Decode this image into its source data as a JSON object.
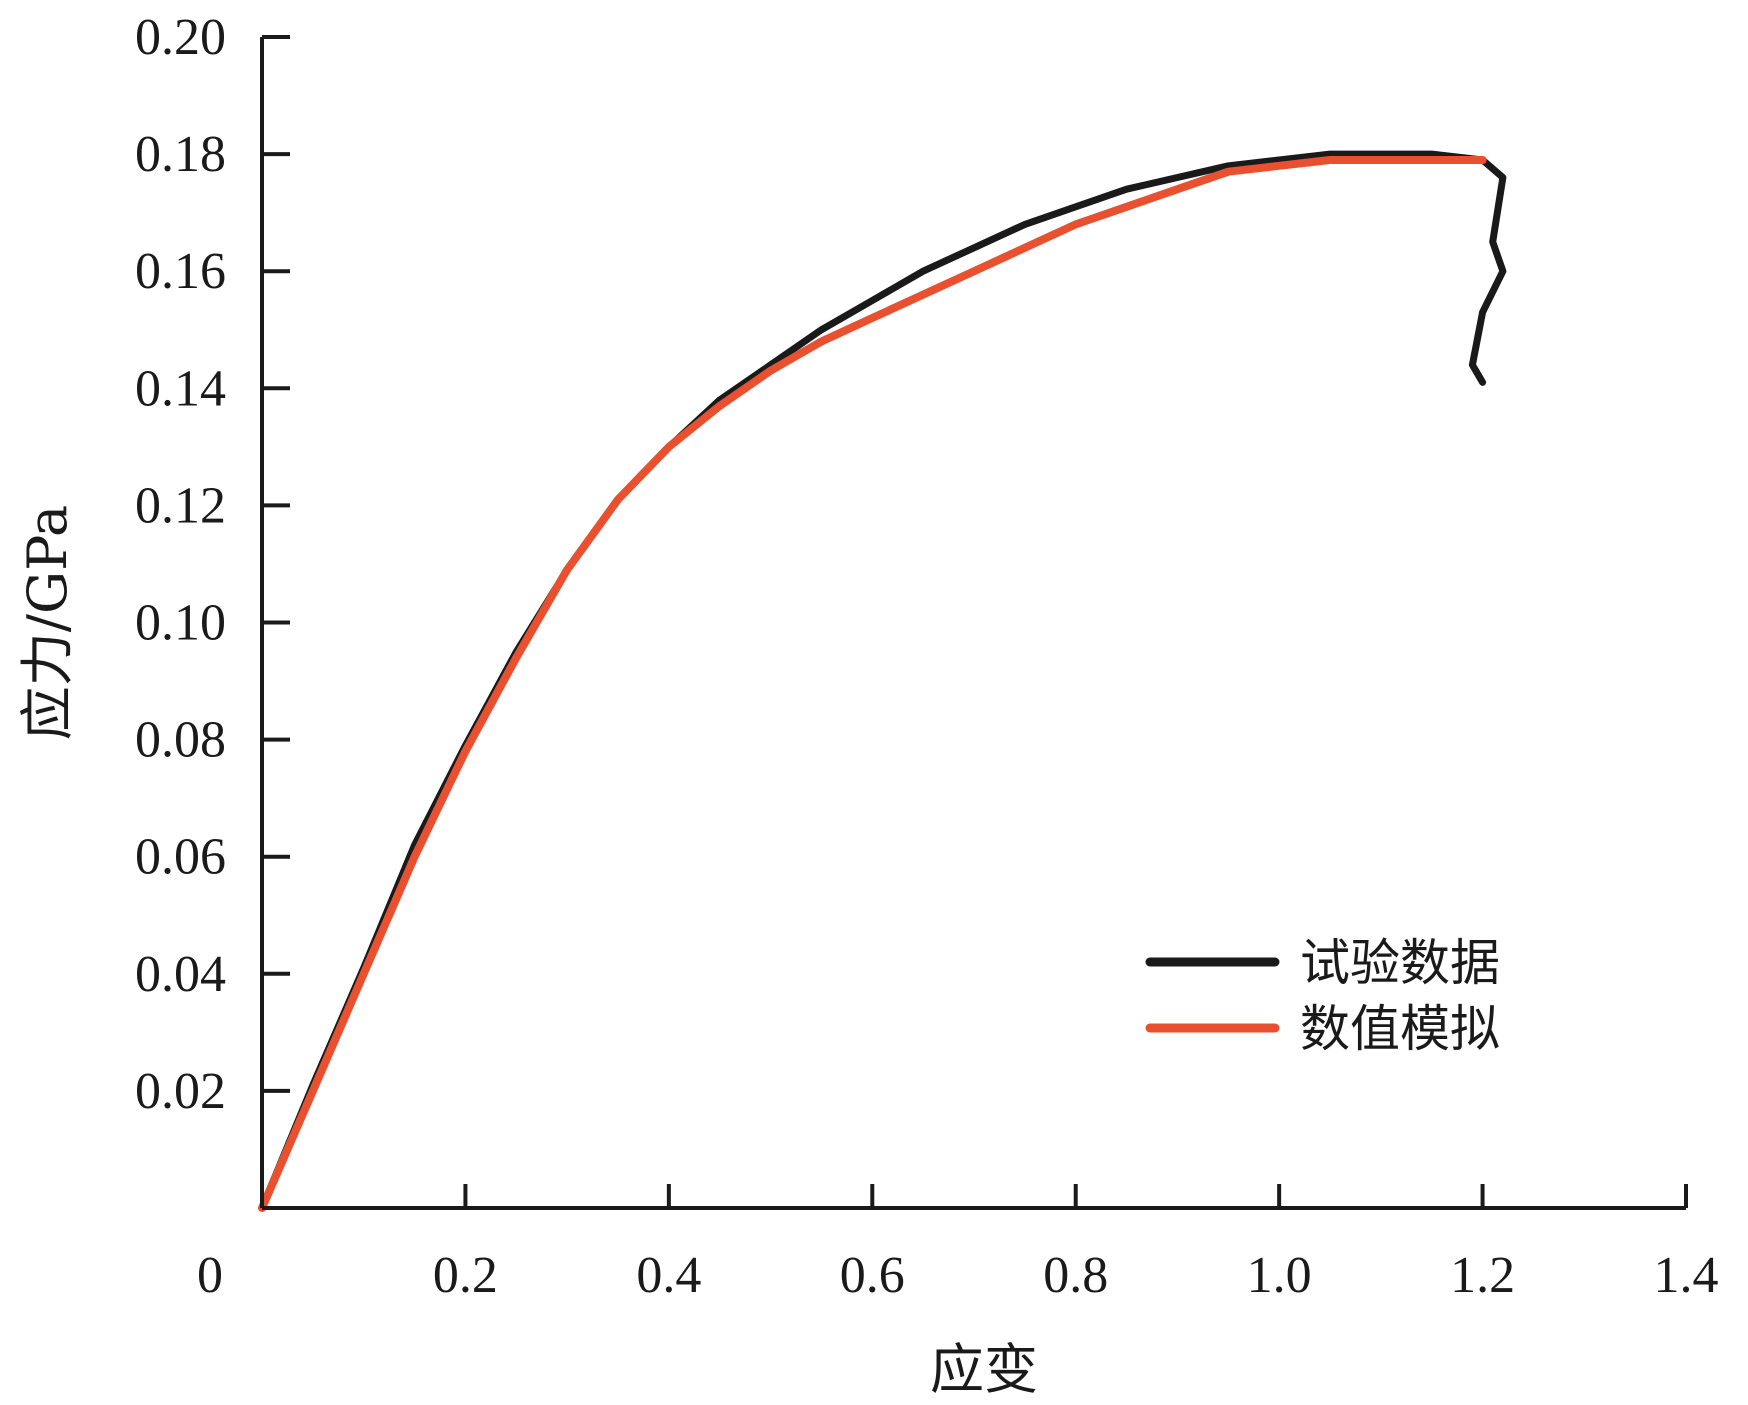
{
  "chart_data": {
    "type": "line",
    "xlabel": "应变",
    "ylabel": "应力/GPa",
    "xlim": [
      0,
      1.4
    ],
    "ylim": [
      0,
      0.2
    ],
    "x_ticks": [
      "0",
      "0.2",
      "0.4",
      "0.6",
      "0.8",
      "1.0",
      "1.2",
      "1.4"
    ],
    "x_tick_values": [
      0,
      0.2,
      0.4,
      0.6,
      0.8,
      1.0,
      1.2,
      1.4
    ],
    "y_ticks": [
      "0.02",
      "0.04",
      "0.06",
      "0.08",
      "0.10",
      "0.12",
      "0.14",
      "0.16",
      "0.18",
      "0.20"
    ],
    "y_tick_values": [
      0.02,
      0.04,
      0.06,
      0.08,
      0.1,
      0.12,
      0.14,
      0.16,
      0.18,
      0.2
    ],
    "grid": false,
    "legend_position": "bottom-right",
    "series": [
      {
        "name": "试验数据",
        "color": "#1a1a1a",
        "x": [
          0,
          0.05,
          0.1,
          0.15,
          0.2,
          0.25,
          0.3,
          0.35,
          0.4,
          0.45,
          0.5,
          0.55,
          0.6,
          0.65,
          0.7,
          0.75,
          0.8,
          0.85,
          0.9,
          0.95,
          1.0,
          1.05,
          1.1,
          1.15,
          1.2,
          1.22,
          1.21,
          1.22,
          1.2,
          1.19,
          1.2
        ],
        "y": [
          0,
          0.021,
          0.041,
          0.062,
          0.079,
          0.095,
          0.109,
          0.121,
          0.13,
          0.138,
          0.144,
          0.15,
          0.155,
          0.16,
          0.164,
          0.168,
          0.171,
          0.174,
          0.176,
          0.178,
          0.179,
          0.18,
          0.18,
          0.18,
          0.179,
          0.176,
          0.165,
          0.16,
          0.153,
          0.144,
          0.141
        ]
      },
      {
        "name": "数值模拟",
        "color": "#e8502f",
        "x": [
          0,
          0.05,
          0.1,
          0.15,
          0.2,
          0.25,
          0.3,
          0.35,
          0.4,
          0.45,
          0.5,
          0.55,
          0.6,
          0.65,
          0.7,
          0.75,
          0.8,
          0.85,
          0.9,
          0.95,
          1.0,
          1.05,
          1.1,
          1.15,
          1.2
        ],
        "y": [
          0,
          0.02,
          0.04,
          0.06,
          0.078,
          0.094,
          0.109,
          0.121,
          0.13,
          0.137,
          0.143,
          0.148,
          0.152,
          0.156,
          0.16,
          0.164,
          0.168,
          0.171,
          0.174,
          0.177,
          0.178,
          0.179,
          0.179,
          0.179,
          0.179
        ]
      }
    ]
  }
}
